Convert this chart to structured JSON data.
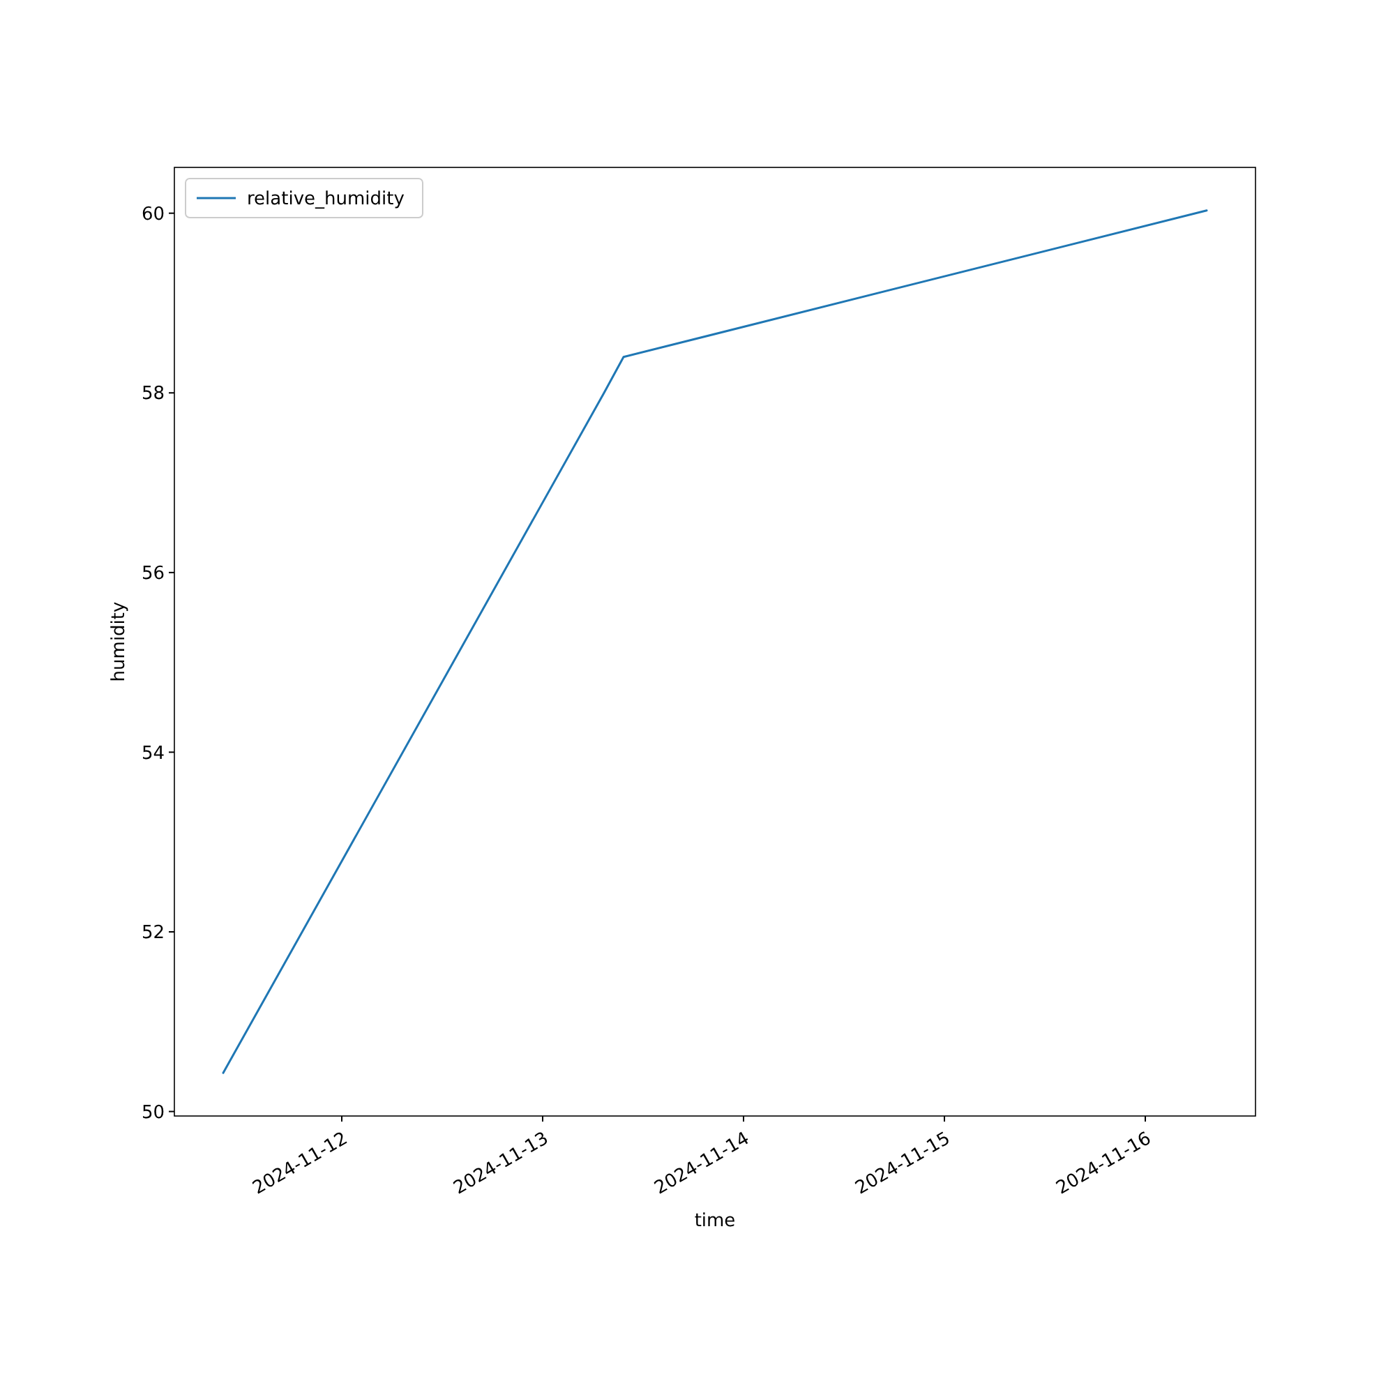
{
  "chart_data": {
    "type": "line",
    "xlabel": "time",
    "ylabel": "humidity",
    "x": [
      "2024-11-11T09:50",
      "2024-11-13T07:20",
      "2024-11-13T09:40",
      "2024-11-16T07:20"
    ],
    "series": [
      {
        "name": "relative_humidity",
        "color": "#1f77b4",
        "values": [
          50.43,
          58.0,
          58.4,
          60.03
        ]
      }
    ],
    "xlim": [
      "2024-11-11T04:00",
      "2024-11-16T13:10"
    ],
    "xticks": [
      "2024-11-12",
      "2024-11-13",
      "2024-11-14",
      "2024-11-15",
      "2024-11-16"
    ],
    "ylim": [
      49.95,
      60.51
    ],
    "yticks": [
      50,
      52,
      54,
      56,
      58,
      60
    ],
    "grid": false,
    "legend": "top left",
    "marker": "none",
    "line_style": "solid"
  }
}
